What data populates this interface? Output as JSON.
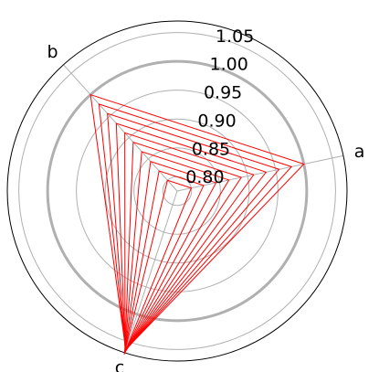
{
  "chart_data": {
    "type": "radar",
    "title": "",
    "axes": [
      "a",
      "b",
      "c"
    ],
    "rlim": [
      0.775,
      1.07
    ],
    "r_ticks": [
      0.8,
      0.85,
      0.9,
      0.95,
      1.0,
      1.05
    ],
    "r_tick_labels": [
      "0.80",
      "0.85",
      "0.90",
      "0.95",
      "1.00",
      "1.05"
    ],
    "highlighted_rings": [
      1.0
    ],
    "grid": true,
    "series_color": "#ff0000",
    "series": [
      {
        "values": [
          0.8,
          0.8,
          1.073
        ]
      },
      {
        "values": [
          0.822,
          0.822,
          1.072
        ]
      },
      {
        "values": [
          0.844,
          0.844,
          1.071
        ]
      },
      {
        "values": [
          0.867,
          0.867,
          1.07
        ]
      },
      {
        "values": [
          0.889,
          0.889,
          1.069
        ]
      },
      {
        "values": [
          0.911,
          0.911,
          1.068
        ]
      },
      {
        "values": [
          0.933,
          0.933,
          1.067
        ]
      },
      {
        "values": [
          0.956,
          0.956,
          1.066
        ]
      },
      {
        "values": [
          0.978,
          0.978,
          1.065
        ]
      },
      {
        "values": [
          1.0,
          1.0,
          1.064
        ]
      }
    ]
  }
}
